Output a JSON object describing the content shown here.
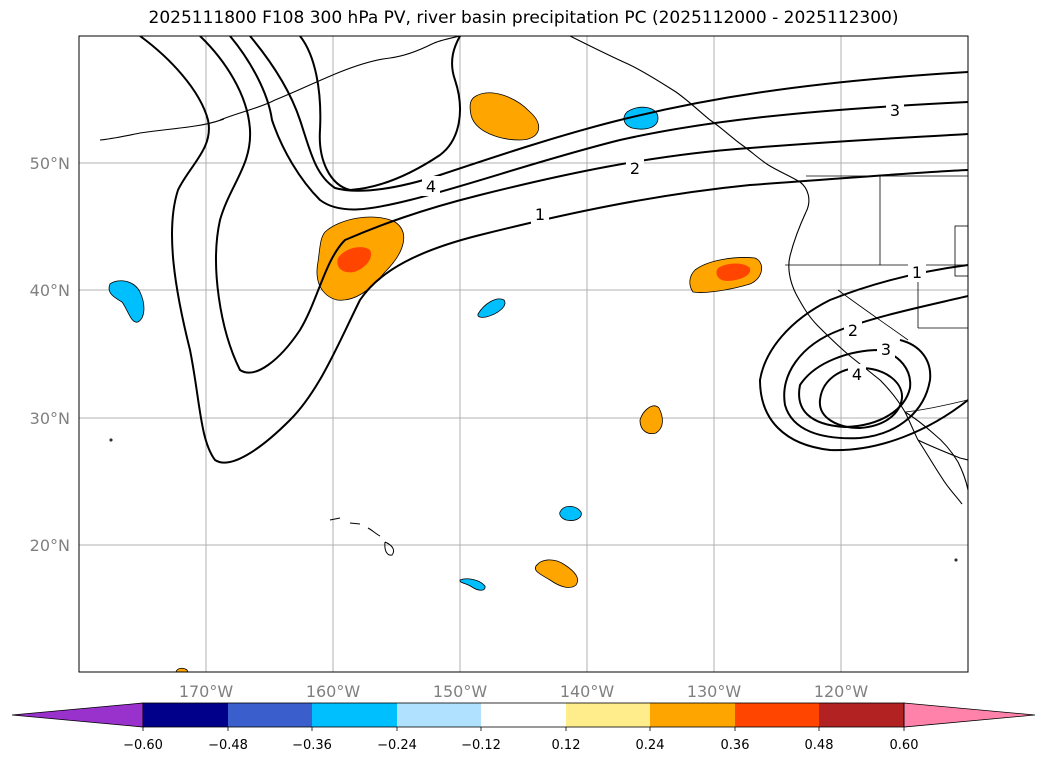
{
  "title": "2025111800 F108 300 hPa PV, river basin precipitation PC (2025112000 - 2025112300)",
  "map": {
    "lon_range": [
      -180,
      -110
    ],
    "lat_range": [
      10,
      60
    ],
    "lat_labels": [
      "20°N",
      "30°N",
      "40°N",
      "50°N"
    ],
    "lon_labels": [
      "170°W",
      "160°W",
      "150°W",
      "140°W",
      "130°W",
      "120°W"
    ],
    "contour_labels": [
      "1",
      "2",
      "3",
      "4",
      "1",
      "2",
      "3",
      "4"
    ]
  },
  "colorbar": {
    "ticks": [
      "−0.60",
      "−0.48",
      "−0.36",
      "−0.24",
      "−0.12",
      "0.12",
      "0.24",
      "0.36",
      "0.48",
      "0.60"
    ],
    "colors": [
      "#9932CC",
      "#00008B",
      "#3A5FCD",
      "#00BFFF",
      "#B0E2FF",
      "#FFFFFF",
      "#FFEC8B",
      "#FFA500",
      "#FF4500",
      "#B22222",
      "#FF82AB"
    ]
  }
}
